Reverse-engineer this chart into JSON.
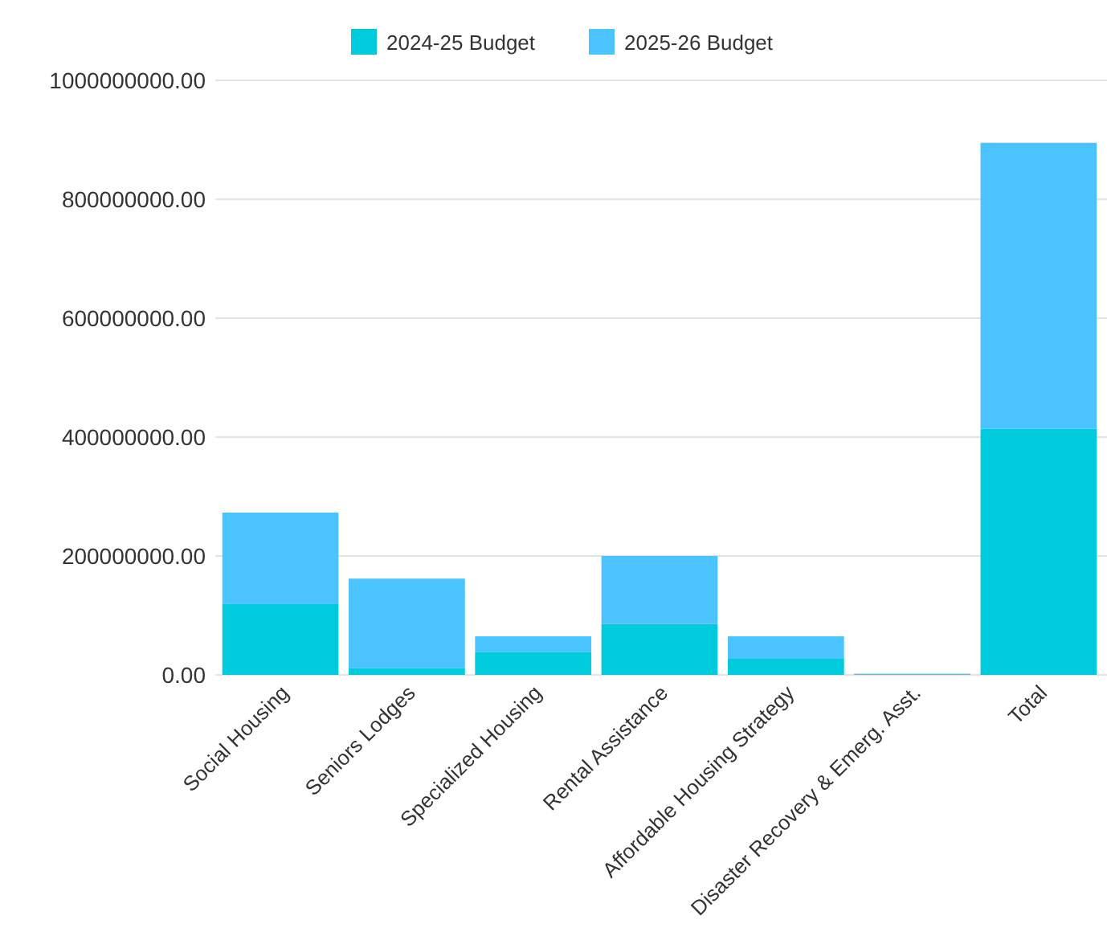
{
  "chart_data": {
    "type": "bar",
    "stacked": true,
    "categories": [
      "Social Housing",
      "Seniors Lodges",
      "Specialized Housing",
      "Rental Assistance",
      "Affordable Housing Strategy",
      "Disaster Recovery & Emerg. Asst.",
      "Total"
    ],
    "series": [
      {
        "name": "2024-25 Budget",
        "color": "#00cbdd",
        "values": [
          119000000,
          11000000,
          38000000,
          86000000,
          27000000,
          1000000,
          414000000
        ]
      },
      {
        "name": "2025-26 Budget",
        "color": "#4ac3ff",
        "values": [
          154000000,
          151000000,
          27000000,
          114000000,
          38000000,
          1000000,
          481000000
        ]
      }
    ],
    "ylim": [
      0,
      1000000000
    ],
    "yticks": [
      {
        "value": 0,
        "label": "0.00"
      },
      {
        "value": 200000000,
        "label": "200000000.00"
      },
      {
        "value": 400000000,
        "label": "400000000.00"
      },
      {
        "value": 600000000,
        "label": "600000000.00"
      },
      {
        "value": 800000000,
        "label": "800000000.00"
      },
      {
        "value": 1000000000,
        "label": "1000000000.00"
      }
    ],
    "grid": "y",
    "legend": "top"
  }
}
